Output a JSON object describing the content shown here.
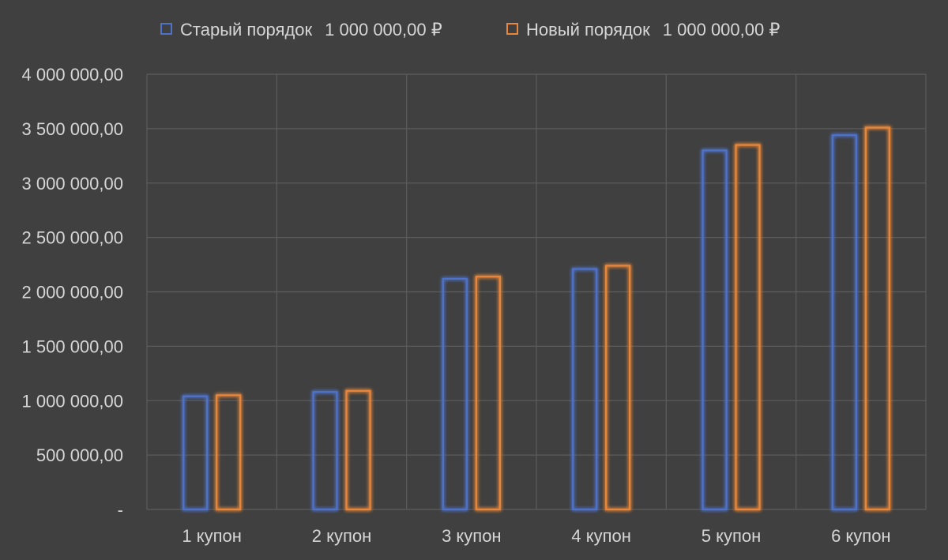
{
  "chart_data": {
    "type": "bar",
    "title": "",
    "xlabel": "",
    "ylabel": "",
    "categories": [
      "1 купон",
      "2 купон",
      "3 купон",
      "4 купон",
      "5 купон",
      "6 купон"
    ],
    "series": [
      {
        "name": "Старый порядок",
        "legend_value": "1 000 000,00 ₽",
        "color": "#4f72c9",
        "values": [
          1040000,
          1080000,
          2120000,
          2210000,
          3300000,
          3440000
        ]
      },
      {
        "name": "Новый порядок",
        "legend_value": "1 000 000,00 ₽",
        "color": "#e8873a",
        "values": [
          1050000,
          1090000,
          2140000,
          2240000,
          3350000,
          3510000
        ]
      }
    ],
    "ylim": [
      0,
      4000000
    ],
    "yticks": [
      {
        "value": 0,
        "label": "-"
      },
      {
        "value": 500000,
        "label": "500 000,00"
      },
      {
        "value": 1000000,
        "label": "1 000 000,00"
      },
      {
        "value": 1500000,
        "label": "1 500 000,00"
      },
      {
        "value": 2000000,
        "label": "2 000 000,00"
      },
      {
        "value": 2500000,
        "label": "2 500 000,00"
      },
      {
        "value": 3000000,
        "label": "3 000 000,00"
      },
      {
        "value": 3500000,
        "label": "3 500 000,00"
      },
      {
        "value": 4000000,
        "label": "4 000 000,00"
      }
    ],
    "grid": true,
    "legend_position": "top",
    "bar_style": "outlined-glow",
    "background": "#404040",
    "text_color": "#d6d6d6",
    "grid_color": "#5c5c5c"
  }
}
